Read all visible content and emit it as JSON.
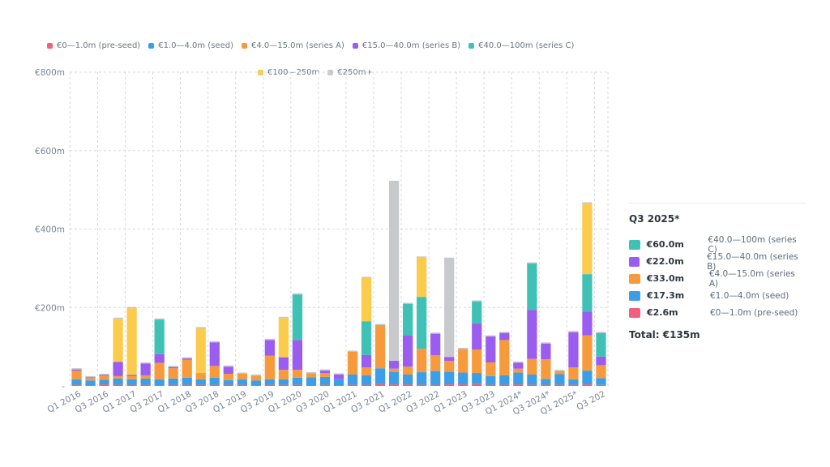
{
  "colors": {
    "preseed": "#f2607e",
    "seed": "#3c9ee6",
    "seriesA": "#f79a3b",
    "seriesB": "#9b5cf0",
    "seriesC": "#3fc1b6",
    "m100_250": "#fbcb4c",
    "m250plus": "#c8c9cc"
  },
  "legend": {
    "row1": [
      {
        "label": "€0—1.0m (pre-seed)",
        "color_key": "preseed"
      },
      {
        "label": "€1.0—4.0m (seed)",
        "color_key": "seed"
      },
      {
        "label": "€4.0—15.0m (series A)",
        "color_key": "seriesA"
      },
      {
        "label": "€15.0—40.0m (series B)",
        "color_key": "seriesB"
      },
      {
        "label": "€40.0—100m (series C)",
        "color_key": "seriesC"
      }
    ],
    "row2": [
      {
        "label": "€100—250m",
        "color_key": "m100_250"
      },
      {
        "label": "€250m+",
        "color_key": "m250plus"
      }
    ]
  },
  "chart_data": {
    "type": "bar",
    "stacked": true,
    "y_tick_labels": [
      "€800m",
      "€600m",
      "€400m",
      "€200m",
      "-"
    ],
    "ylim": [
      0,
      800
    ],
    "grid": true,
    "legend_position": "top",
    "x_tick_labels": [
      "Q1 2016",
      "Q3 2016",
      "Q1 2017",
      "Q3 2017",
      "Q1 2018",
      "Q3 2018",
      "Q1 2019",
      "Q3 2019",
      "Q1 2020",
      "Q3 2020",
      "Q1 2021",
      "Q3 2021",
      "Q1 2022",
      "Q3 2022",
      "Q1 2023",
      "Q3 2023",
      "Q1 2024*",
      "Q3 2024*",
      "Q1 2025*",
      "Q3 202"
    ],
    "categories": [
      "Q1 2016",
      "Q2 2016",
      "Q3 2016",
      "Q4 2016",
      "Q1 2017",
      "Q2 2017",
      "Q3 2017",
      "Q4 2017",
      "Q1 2018",
      "Q2 2018",
      "Q3 2018",
      "Q4 2018",
      "Q1 2019",
      "Q2 2019",
      "Q3 2019",
      "Q4 2019",
      "Q1 2020",
      "Q2 2020",
      "Q3 2020",
      "Q4 2020",
      "Q1 2021",
      "Q2 2021",
      "Q3 2021",
      "Q4 2021",
      "Q1 2022",
      "Q2 2022",
      "Q3 2022",
      "Q4 2022",
      "Q1 2023",
      "Q2 2023",
      "Q3 2023",
      "Q4 2023",
      "Q1 2024*",
      "Q2 2024*",
      "Q3 2024*",
      "Q4 2024*",
      "Q1 2025*",
      "Q2 2025*",
      "Q3 2025*"
    ],
    "series": [
      {
        "name": "€0—1.0m (pre-seed)",
        "color_key": "preseed",
        "values": [
          3,
          2,
          4,
          3,
          3,
          3,
          2,
          3,
          3,
          3,
          3,
          3,
          3,
          2,
          3,
          3,
          3,
          2,
          3,
          2,
          3,
          3,
          5,
          4,
          4,
          3,
          3,
          4,
          4,
          5,
          3,
          3,
          4,
          3,
          3,
          3,
          3,
          4,
          2.6
        ]
      },
      {
        "name": "€1.0—4.0m (seed)",
        "color_key": "seed",
        "values": [
          14,
          12,
          12,
          16,
          14,
          16,
          15,
          16,
          18,
          14,
          18,
          12,
          14,
          12,
          14,
          14,
          18,
          20,
          20,
          15,
          26,
          24,
          40,
          32,
          25,
          32,
          35,
          32,
          30,
          28,
          22,
          24,
          30,
          26,
          15,
          27,
          14,
          35,
          17.3
        ]
      },
      {
        "name": "€4.0—15.0m (series A)",
        "color_key": "seriesA",
        "values": [
          22,
          6,
          10,
          6,
          8,
          8,
          42,
          26,
          46,
          16,
          30,
          16,
          14,
          12,
          60,
          24,
          20,
          10,
          10,
          0,
          58,
          20,
          110,
          8,
          20,
          60,
          40,
          28,
          60,
          60,
          35,
          90,
          10,
          40,
          50,
          8,
          30,
          90,
          33
        ]
      },
      {
        "name": "€15.0—40.0m (series B)",
        "color_key": "seriesB",
        "values": [
          3,
          2,
          2,
          36,
          3,
          30,
          22,
          3,
          3,
          0,
          60,
          18,
          0,
          0,
          40,
          32,
          76,
          0,
          6,
          12,
          0,
          32,
          0,
          20,
          80,
          0,
          55,
          10,
          0,
          66,
          66,
          18,
          15,
          125,
          40,
          0,
          90,
          60,
          22
        ]
      },
      {
        "name": "€40.0—100m (series C)",
        "color_key": "seriesC",
        "values": [
          0,
          0,
          0,
          0,
          0,
          0,
          88,
          0,
          0,
          0,
          0,
          0,
          0,
          0,
          0,
          0,
          116,
          0,
          0,
          0,
          0,
          86,
          0,
          0,
          80,
          132,
          0,
          0,
          0,
          56,
          0,
          0,
          0,
          118,
          0,
          0,
          0,
          96,
          60
        ]
      },
      {
        "name": "€100—250m",
        "color_key": "m100_250",
        "values": [
          0,
          0,
          0,
          110,
          170,
          0,
          0,
          0,
          0,
          114,
          0,
          0,
          0,
          0,
          0,
          100,
          0,
          0,
          0,
          0,
          0,
          110,
          0,
          0,
          0,
          100,
          0,
          0,
          0,
          0,
          0,
          0,
          0,
          0,
          0,
          0,
          0,
          180,
          0
        ]
      },
      {
        "name": "€250m+",
        "color_key": "m250plus",
        "values": [
          0,
          0,
          0,
          0,
          0,
          0,
          0,
          0,
          0,
          0,
          0,
          0,
          0,
          0,
          0,
          0,
          0,
          0,
          0,
          0,
          0,
          0,
          0,
          456,
          0,
          0,
          0,
          250,
          0,
          0,
          0,
          0,
          0,
          0,
          0,
          0,
          0,
          0,
          0
        ]
      }
    ]
  },
  "panel": {
    "title": "Q3 2025*",
    "rows": [
      {
        "value": "€60.0m",
        "label": "€40.0—100m (series C)",
        "color_key": "seriesC"
      },
      {
        "value": "€22.0m",
        "label": "€15.0—40.0m (series B)",
        "color_key": "seriesB"
      },
      {
        "value": "€33.0m",
        "label": "€4.0—15.0m (series A)",
        "color_key": "seriesA"
      },
      {
        "value": "€17.3m",
        "label": "€1.0—4.0m (seed)",
        "color_key": "seed"
      },
      {
        "value": "€2.6m",
        "label": "€0—1.0m (pre-seed)",
        "color_key": "preseed"
      }
    ],
    "total": "Total: €135m"
  }
}
